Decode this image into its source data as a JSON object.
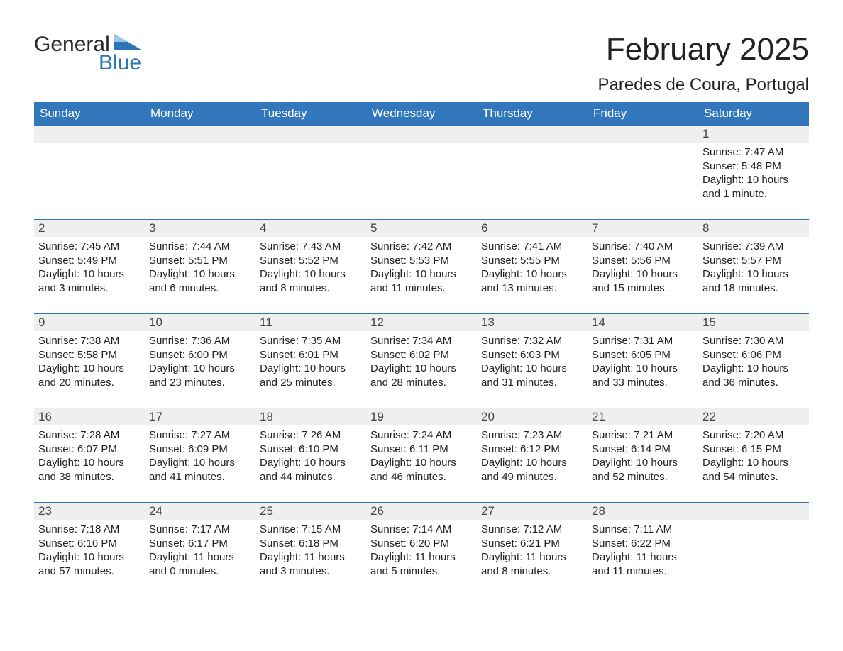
{
  "logo": {
    "word1": "General",
    "word2": "Blue"
  },
  "title": "February 2025",
  "location": "Paredes de Coura, Portugal",
  "colors": {
    "header_bg": "#3277bc",
    "header_text": "#ffffff",
    "row_separator": "#2f75b5",
    "daynum_bg": "#efefef",
    "text": "#222222",
    "logo_blue": "#2f75b5"
  },
  "weekdays": [
    "Sunday",
    "Monday",
    "Tuesday",
    "Wednesday",
    "Thursday",
    "Friday",
    "Saturday"
  ],
  "weeks": [
    [
      null,
      null,
      null,
      null,
      null,
      null,
      {
        "n": "1",
        "sunrise": "Sunrise: 7:47 AM",
        "sunset": "Sunset: 5:48 PM",
        "day1": "Daylight: 10 hours",
        "day2": "and 1 minute."
      }
    ],
    [
      {
        "n": "2",
        "sunrise": "Sunrise: 7:45 AM",
        "sunset": "Sunset: 5:49 PM",
        "day1": "Daylight: 10 hours",
        "day2": "and 3 minutes."
      },
      {
        "n": "3",
        "sunrise": "Sunrise: 7:44 AM",
        "sunset": "Sunset: 5:51 PM",
        "day1": "Daylight: 10 hours",
        "day2": "and 6 minutes."
      },
      {
        "n": "4",
        "sunrise": "Sunrise: 7:43 AM",
        "sunset": "Sunset: 5:52 PM",
        "day1": "Daylight: 10 hours",
        "day2": "and 8 minutes."
      },
      {
        "n": "5",
        "sunrise": "Sunrise: 7:42 AM",
        "sunset": "Sunset: 5:53 PM",
        "day1": "Daylight: 10 hours",
        "day2": "and 11 minutes."
      },
      {
        "n": "6",
        "sunrise": "Sunrise: 7:41 AM",
        "sunset": "Sunset: 5:55 PM",
        "day1": "Daylight: 10 hours",
        "day2": "and 13 minutes."
      },
      {
        "n": "7",
        "sunrise": "Sunrise: 7:40 AM",
        "sunset": "Sunset: 5:56 PM",
        "day1": "Daylight: 10 hours",
        "day2": "and 15 minutes."
      },
      {
        "n": "8",
        "sunrise": "Sunrise: 7:39 AM",
        "sunset": "Sunset: 5:57 PM",
        "day1": "Daylight: 10 hours",
        "day2": "and 18 minutes."
      }
    ],
    [
      {
        "n": "9",
        "sunrise": "Sunrise: 7:38 AM",
        "sunset": "Sunset: 5:58 PM",
        "day1": "Daylight: 10 hours",
        "day2": "and 20 minutes."
      },
      {
        "n": "10",
        "sunrise": "Sunrise: 7:36 AM",
        "sunset": "Sunset: 6:00 PM",
        "day1": "Daylight: 10 hours",
        "day2": "and 23 minutes."
      },
      {
        "n": "11",
        "sunrise": "Sunrise: 7:35 AM",
        "sunset": "Sunset: 6:01 PM",
        "day1": "Daylight: 10 hours",
        "day2": "and 25 minutes."
      },
      {
        "n": "12",
        "sunrise": "Sunrise: 7:34 AM",
        "sunset": "Sunset: 6:02 PM",
        "day1": "Daylight: 10 hours",
        "day2": "and 28 minutes."
      },
      {
        "n": "13",
        "sunrise": "Sunrise: 7:32 AM",
        "sunset": "Sunset: 6:03 PM",
        "day1": "Daylight: 10 hours",
        "day2": "and 31 minutes."
      },
      {
        "n": "14",
        "sunrise": "Sunrise: 7:31 AM",
        "sunset": "Sunset: 6:05 PM",
        "day1": "Daylight: 10 hours",
        "day2": "and 33 minutes."
      },
      {
        "n": "15",
        "sunrise": "Sunrise: 7:30 AM",
        "sunset": "Sunset: 6:06 PM",
        "day1": "Daylight: 10 hours",
        "day2": "and 36 minutes."
      }
    ],
    [
      {
        "n": "16",
        "sunrise": "Sunrise: 7:28 AM",
        "sunset": "Sunset: 6:07 PM",
        "day1": "Daylight: 10 hours",
        "day2": "and 38 minutes."
      },
      {
        "n": "17",
        "sunrise": "Sunrise: 7:27 AM",
        "sunset": "Sunset: 6:09 PM",
        "day1": "Daylight: 10 hours",
        "day2": "and 41 minutes."
      },
      {
        "n": "18",
        "sunrise": "Sunrise: 7:26 AM",
        "sunset": "Sunset: 6:10 PM",
        "day1": "Daylight: 10 hours",
        "day2": "and 44 minutes."
      },
      {
        "n": "19",
        "sunrise": "Sunrise: 7:24 AM",
        "sunset": "Sunset: 6:11 PM",
        "day1": "Daylight: 10 hours",
        "day2": "and 46 minutes."
      },
      {
        "n": "20",
        "sunrise": "Sunrise: 7:23 AM",
        "sunset": "Sunset: 6:12 PM",
        "day1": "Daylight: 10 hours",
        "day2": "and 49 minutes."
      },
      {
        "n": "21",
        "sunrise": "Sunrise: 7:21 AM",
        "sunset": "Sunset: 6:14 PM",
        "day1": "Daylight: 10 hours",
        "day2": "and 52 minutes."
      },
      {
        "n": "22",
        "sunrise": "Sunrise: 7:20 AM",
        "sunset": "Sunset: 6:15 PM",
        "day1": "Daylight: 10 hours",
        "day2": "and 54 minutes."
      }
    ],
    [
      {
        "n": "23",
        "sunrise": "Sunrise: 7:18 AM",
        "sunset": "Sunset: 6:16 PM",
        "day1": "Daylight: 10 hours",
        "day2": "and 57 minutes."
      },
      {
        "n": "24",
        "sunrise": "Sunrise: 7:17 AM",
        "sunset": "Sunset: 6:17 PM",
        "day1": "Daylight: 11 hours",
        "day2": "and 0 minutes."
      },
      {
        "n": "25",
        "sunrise": "Sunrise: 7:15 AM",
        "sunset": "Sunset: 6:18 PM",
        "day1": "Daylight: 11 hours",
        "day2": "and 3 minutes."
      },
      {
        "n": "26",
        "sunrise": "Sunrise: 7:14 AM",
        "sunset": "Sunset: 6:20 PM",
        "day1": "Daylight: 11 hours",
        "day2": "and 5 minutes."
      },
      {
        "n": "27",
        "sunrise": "Sunrise: 7:12 AM",
        "sunset": "Sunset: 6:21 PM",
        "day1": "Daylight: 11 hours",
        "day2": "and 8 minutes."
      },
      {
        "n": "28",
        "sunrise": "Sunrise: 7:11 AM",
        "sunset": "Sunset: 6:22 PM",
        "day1": "Daylight: 11 hours",
        "day2": "and 11 minutes."
      },
      null
    ]
  ]
}
